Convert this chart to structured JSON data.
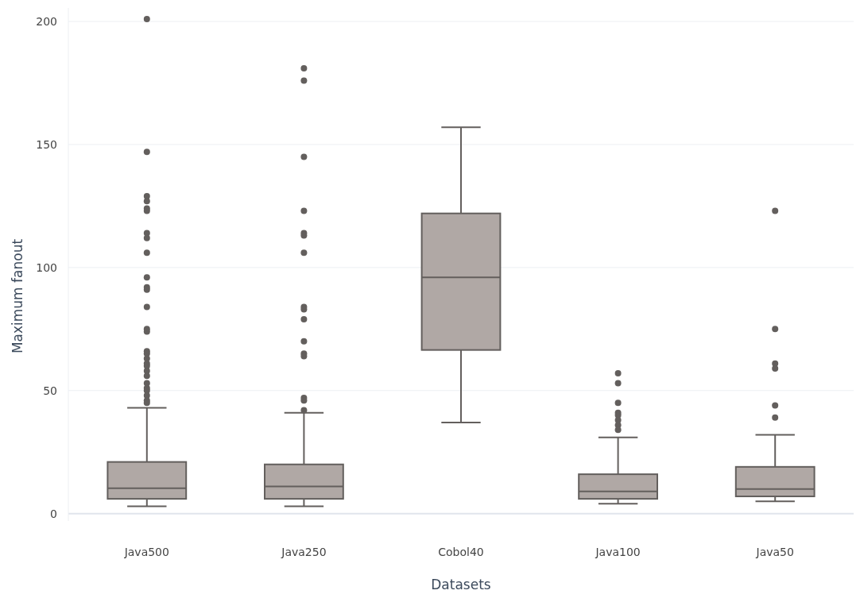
{
  "chart_data": {
    "type": "box",
    "xlabel": "Datasets",
    "ylabel": "Maximum fanout",
    "categories": [
      "Java500",
      "Java250",
      "Cobol40",
      "Java100",
      "Java50"
    ],
    "color": "#b0a8a5",
    "boxes": [
      {
        "low": 3,
        "q1": 6,
        "median": 10.3,
        "q3": 21,
        "high": 43,
        "outliers": [
          201,
          147,
          129,
          127,
          124,
          123,
          114,
          112,
          106,
          96,
          92,
          91,
          84,
          75,
          74,
          66,
          65,
          63,
          61,
          60,
          58,
          56,
          53,
          51,
          50,
          48,
          46,
          45
        ]
      },
      {
        "low": 3,
        "q1": 6,
        "median": 11,
        "q3": 20,
        "high": 41,
        "outliers": [
          181,
          176,
          145,
          123,
          114,
          113,
          106,
          84,
          83,
          79,
          70,
          65,
          64,
          47,
          46,
          42
        ]
      },
      {
        "low": 37,
        "q1": 66.5,
        "median": 96,
        "q3": 122,
        "high": 157
      },
      {
        "low": 4,
        "q1": 6,
        "median": 9,
        "q3": 16,
        "high": 31,
        "outliers": [
          57,
          53,
          45,
          41,
          40,
          38,
          36,
          34
        ]
      },
      {
        "low": 5,
        "q1": 7,
        "median": 10,
        "q3": 19,
        "high": 32,
        "outliers": [
          123,
          75,
          61,
          59,
          44,
          39
        ]
      }
    ],
    "ylim": [
      -3,
      205.5
    ],
    "yticks": [
      0,
      50,
      100,
      150,
      200
    ],
    "grid": "y"
  }
}
